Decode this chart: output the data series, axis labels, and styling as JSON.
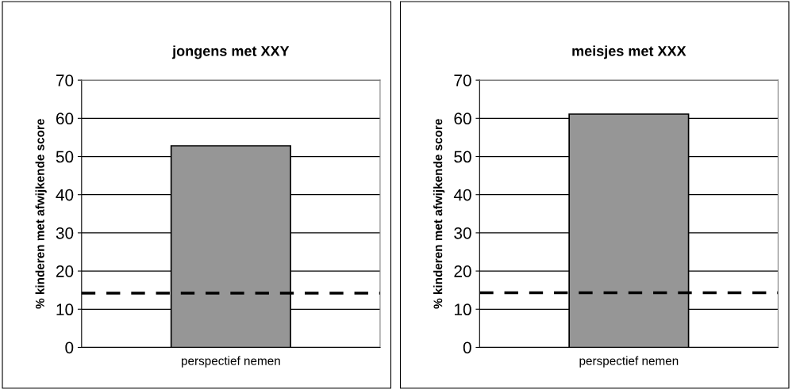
{
  "chart_data": [
    {
      "type": "bar",
      "title": "jongens met XXY",
      "ylabel": "% kinderen met afwijkende score",
      "categories": [
        "perspectief nemen"
      ],
      "values": [
        52.8
      ],
      "color": "#969696",
      "ylim": [
        0,
        70
      ],
      "yticks": [
        0,
        10,
        20,
        30,
        40,
        50,
        60,
        70
      ],
      "grid": "y",
      "ref_lines": [
        {
          "axis": "y",
          "value": 14.2,
          "color": "#000000",
          "line_style": "dashed"
        }
      ]
    },
    {
      "type": "bar",
      "title": "meisjes met XXX",
      "ylabel": "% kinderen met afwijkende score",
      "categories": [
        "perspectief nemen"
      ],
      "values": [
        61.1
      ],
      "color": "#969696",
      "ylim": [
        0,
        70
      ],
      "yticks": [
        0,
        10,
        20,
        30,
        40,
        50,
        60,
        70
      ],
      "grid": "y",
      "ref_lines": [
        {
          "axis": "y",
          "value": 14.3,
          "color": "#000000",
          "line_style": "dashed"
        }
      ]
    }
  ]
}
